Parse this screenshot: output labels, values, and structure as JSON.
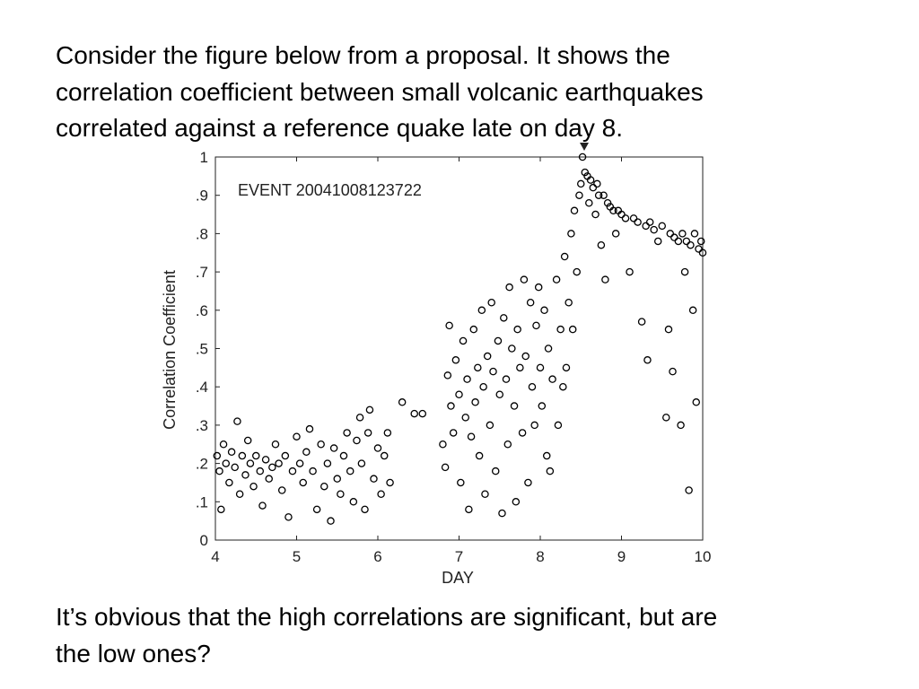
{
  "text": {
    "intro": [
      "Consider the figure below from a proposal.  It shows the",
      "correlation coefficient between small volcanic earthquakes",
      "correlated against a reference quake late on day 8."
    ],
    "question": [
      "It’s obvious that the high correlations are significant, but are",
      "the low ones?"
    ]
  },
  "chart_data": {
    "type": "scatter",
    "annotation": "EVENT 20041008123722",
    "x_label": "DAY",
    "y_label": "Correlation Coefficient",
    "xlim": [
      4,
      10
    ],
    "ylim": [
      0,
      1
    ],
    "xticks": [
      4,
      5,
      6,
      7,
      8,
      9,
      10
    ],
    "yticks": [
      0,
      {
        "value": 0.1,
        "label": ".1"
      },
      {
        "value": 0.2,
        "label": ".2"
      },
      {
        "value": 0.3,
        "label": ".3"
      },
      {
        "value": 0.4,
        "label": ".4"
      },
      {
        "value": 0.5,
        "label": ".5"
      },
      {
        "value": 0.6,
        "label": ".6"
      },
      {
        "value": 0.7,
        "label": ".7"
      },
      {
        "value": 0.8,
        "label": ".8"
      },
      {
        "value": 0.9,
        "label": ".9"
      },
      1
    ],
    "color": "#000000",
    "x": [
      4.02,
      4.05,
      4.07,
      4.1,
      4.13,
      4.17,
      4.2,
      4.24,
      4.27,
      4.3,
      4.33,
      4.37,
      4.4,
      4.43,
      4.47,
      4.5,
      4.55,
      4.58,
      4.62,
      4.66,
      4.7,
      4.74,
      4.78,
      4.82,
      4.86,
      4.9,
      4.95,
      5.0,
      5.04,
      5.08,
      5.12,
      5.16,
      5.2,
      5.25,
      5.3,
      5.34,
      5.38,
      5.42,
      5.46,
      5.5,
      5.54,
      5.58,
      5.62,
      5.66,
      5.7,
      5.74,
      5.78,
      5.8,
      5.84,
      5.88,
      5.9,
      5.95,
      6.0,
      6.04,
      6.08,
      6.12,
      6.15,
      6.3,
      6.45,
      6.55,
      6.8,
      6.83,
      6.86,
      6.88,
      6.9,
      6.93,
      6.96,
      7.0,
      7.02,
      7.05,
      7.08,
      7.1,
      7.12,
      7.15,
      7.18,
      7.2,
      7.23,
      7.25,
      7.28,
      7.3,
      7.32,
      7.35,
      7.38,
      7.4,
      7.42,
      7.45,
      7.48,
      7.5,
      7.53,
      7.55,
      7.58,
      7.6,
      7.62,
      7.65,
      7.68,
      7.7,
      7.72,
      7.75,
      7.78,
      7.8,
      7.82,
      7.85,
      7.88,
      7.9,
      7.93,
      7.95,
      7.98,
      8.0,
      8.02,
      8.05,
      8.08,
      8.1,
      8.12,
      8.15,
      8.2,
      8.22,
      8.25,
      8.28,
      8.3,
      8.32,
      8.35,
      8.38,
      8.4,
      8.42,
      8.45,
      8.48,
      8.5,
      8.52,
      8.55,
      8.58,
      8.6,
      8.62,
      8.65,
      8.68,
      8.7,
      8.72,
      8.75,
      8.78,
      8.8,
      8.83,
      8.86,
      8.9,
      8.93,
      8.96,
      9.0,
      9.05,
      9.1,
      9.15,
      9.2,
      9.25,
      9.3,
      9.32,
      9.35,
      9.4,
      9.45,
      9.5,
      9.55,
      9.58,
      9.6,
      9.63,
      9.65,
      9.7,
      9.73,
      9.75,
      9.78,
      9.8,
      9.83,
      9.85,
      9.88,
      9.9,
      9.92,
      9.95,
      9.98,
      10.0
    ],
    "values": [
      0.22,
      0.18,
      0.08,
      0.25,
      0.2,
      0.15,
      0.23,
      0.19,
      0.31,
      0.12,
      0.22,
      0.17,
      0.26,
      0.2,
      0.14,
      0.22,
      0.18,
      0.09,
      0.21,
      0.16,
      0.19,
      0.25,
      0.2,
      0.13,
      0.22,
      0.06,
      0.18,
      0.27,
      0.2,
      0.15,
      0.23,
      0.29,
      0.18,
      0.08,
      0.25,
      0.14,
      0.2,
      0.05,
      0.24,
      0.16,
      0.12,
      0.22,
      0.28,
      0.18,
      0.1,
      0.26,
      0.32,
      0.2,
      0.08,
      0.28,
      0.34,
      0.16,
      0.24,
      0.12,
      0.22,
      0.28,
      0.15,
      0.36,
      0.33,
      0.33,
      0.25,
      0.19,
      0.43,
      0.56,
      0.35,
      0.28,
      0.47,
      0.38,
      0.15,
      0.52,
      0.32,
      0.42,
      0.08,
      0.27,
      0.55,
      0.36,
      0.45,
      0.22,
      0.6,
      0.4,
      0.12,
      0.48,
      0.3,
      0.62,
      0.44,
      0.18,
      0.52,
      0.38,
      0.07,
      0.58,
      0.42,
      0.25,
      0.66,
      0.5,
      0.35,
      0.1,
      0.55,
      0.45,
      0.28,
      0.68,
      0.48,
      0.15,
      0.62,
      0.4,
      0.3,
      0.56,
      0.66,
      0.45,
      0.35,
      0.6,
      0.22,
      0.5,
      0.18,
      0.42,
      0.68,
      0.3,
      0.55,
      0.4,
      0.74,
      0.45,
      0.62,
      0.8,
      0.55,
      0.86,
      0.7,
      0.9,
      0.93,
      1.0,
      0.96,
      0.95,
      0.88,
      0.94,
      0.92,
      0.85,
      0.93,
      0.9,
      0.77,
      0.9,
      0.68,
      0.88,
      0.87,
      0.86,
      0.8,
      0.86,
      0.85,
      0.84,
      0.7,
      0.84,
      0.83,
      0.57,
      0.82,
      0.47,
      0.83,
      0.81,
      0.78,
      0.82,
      0.32,
      0.55,
      0.8,
      0.44,
      0.79,
      0.78,
      0.3,
      0.8,
      0.7,
      0.78,
      0.13,
      0.77,
      0.6,
      0.8,
      0.36,
      0.76,
      0.78,
      0.75
    ]
  }
}
